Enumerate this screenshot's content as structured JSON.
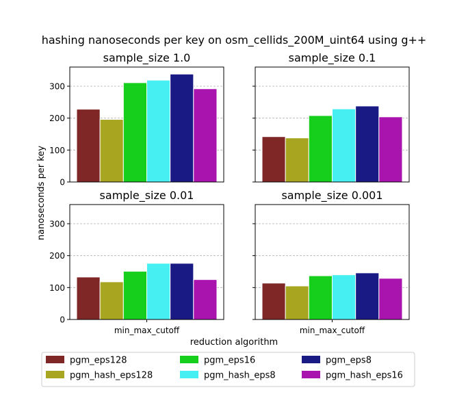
{
  "chart_data": {
    "type": "bar",
    "title": "hashing nanoseconds per key on osm_cellids_200M_uint64 using g++",
    "xlabel": "reduction algorithm",
    "ylabel": "nanoseconds per key",
    "ylim": [
      0,
      360
    ],
    "yticks": [
      0,
      100,
      200,
      300
    ],
    "grid": "horizontal dashed",
    "legend_position": "bottom",
    "legend_columns": 3,
    "categories": [
      "min_max_cutoff"
    ],
    "series_meta": [
      {
        "name": "pgm_eps128",
        "color": "#7f2627"
      },
      {
        "name": "pgm_hash_eps128",
        "color": "#a8a521"
      },
      {
        "name": "pgm_eps16",
        "color": "#15cf1c"
      },
      {
        "name": "pgm_hash_eps8",
        "color": "#46eff1"
      },
      {
        "name": "pgm_eps8",
        "color": "#1a1a85"
      },
      {
        "name": "pgm_hash_eps16",
        "color": "#aa14ae"
      }
    ],
    "panels": [
      {
        "title": "sample_size 1.0",
        "values": [
          228,
          196,
          311,
          319,
          338,
          292
        ]
      },
      {
        "title": "sample_size 0.1",
        "values": [
          142,
          138,
          208,
          229,
          238,
          204
        ]
      },
      {
        "title": "sample_size 0.01",
        "values": [
          133,
          118,
          151,
          176,
          176,
          125
        ]
      },
      {
        "title": "sample_size 0.001",
        "values": [
          114,
          105,
          137,
          140,
          146,
          129
        ]
      }
    ]
  }
}
